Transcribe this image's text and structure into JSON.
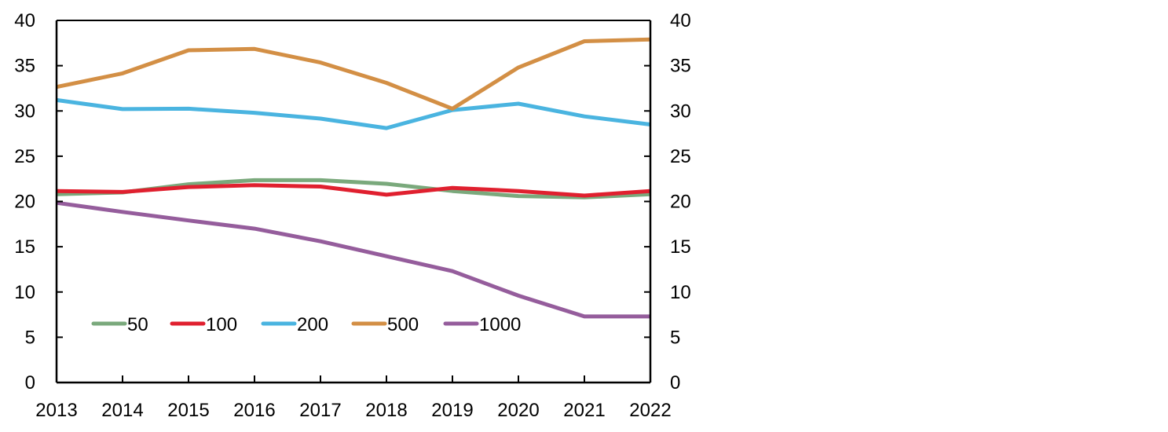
{
  "chart_data": {
    "type": "line",
    "title": "",
    "xlabel": "",
    "ylabel": "",
    "y2label": "",
    "categories": [
      "2013",
      "2014",
      "2015",
      "2016",
      "2017",
      "2018",
      "2019",
      "2020",
      "2021",
      "2022"
    ],
    "ylim": [
      0,
      40
    ],
    "y2lim": [
      0,
      40
    ],
    "yticks": [
      0,
      5,
      10,
      15,
      20,
      25,
      30,
      35,
      40
    ],
    "grid": false,
    "legend": {
      "placement": "bottom-left inside",
      "order": [
        "50",
        "100",
        "200",
        "500",
        "1000"
      ]
    },
    "series": [
      {
        "name": "50",
        "color": "#7aa97c",
        "values": [
          20.8,
          21.0,
          21.9,
          22.35,
          22.35,
          21.95,
          21.15,
          20.6,
          20.45,
          20.8
        ]
      },
      {
        "name": "100",
        "color": "#e0202f",
        "values": [
          21.15,
          21.05,
          21.6,
          21.8,
          21.65,
          20.75,
          21.5,
          21.15,
          20.65,
          21.15
        ]
      },
      {
        "name": "200",
        "color": "#4ab4e0",
        "values": [
          31.2,
          30.2,
          30.25,
          29.8,
          29.15,
          28.1,
          30.1,
          30.8,
          29.4,
          28.5
        ]
      },
      {
        "name": "500",
        "color": "#d38f45",
        "values": [
          32.65,
          34.15,
          36.7,
          36.85,
          35.35,
          33.1,
          30.25,
          34.8,
          37.7,
          37.9
        ]
      },
      {
        "name": "1000",
        "color": "#955d9c",
        "values": [
          19.85,
          18.85,
          17.9,
          17.0,
          15.6,
          13.95,
          12.3,
          9.6,
          7.3,
          7.3
        ]
      }
    ]
  }
}
